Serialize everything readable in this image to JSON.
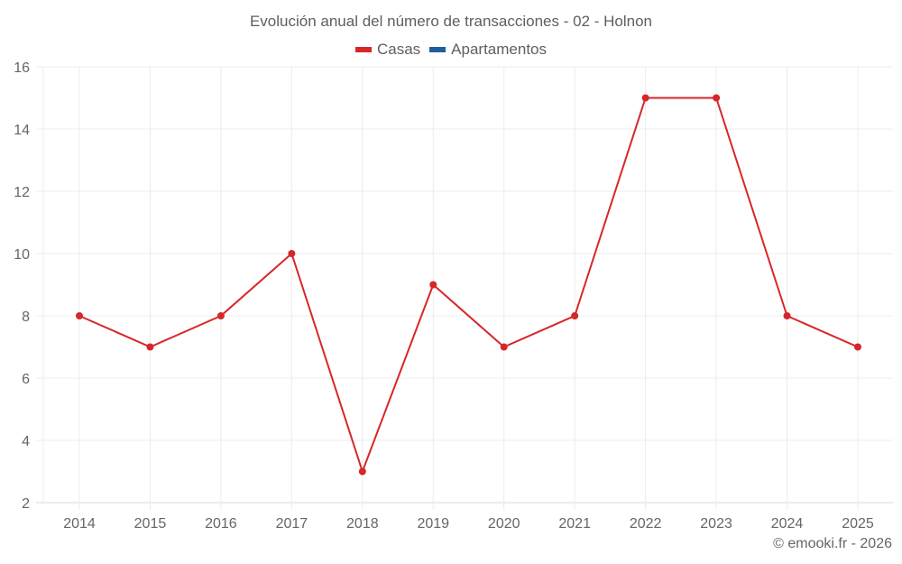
{
  "title": "Evolución anual del número de transacciones - 02 - Holnon",
  "legend": [
    {
      "label": "Casas",
      "color": "#d62728"
    },
    {
      "label": "Apartamentos",
      "color": "#1f5f9a"
    }
  ],
  "credit": "© emooki.fr - 2026",
  "chart_data": {
    "type": "line",
    "title": "Evolución anual del número de transacciones - 02 - Holnon",
    "xlabel": "",
    "ylabel": "",
    "x": [
      "2014",
      "2015",
      "2016",
      "2017",
      "2018",
      "2019",
      "2020",
      "2021",
      "2022",
      "2023",
      "2024",
      "2025"
    ],
    "series": [
      {
        "name": "Casas",
        "color": "#d62728",
        "values": [
          8,
          7,
          8,
          10,
          3,
          9,
          7,
          8,
          15,
          15,
          8,
          7
        ]
      },
      {
        "name": "Apartamentos",
        "color": "#1f5f9a",
        "values": []
      }
    ],
    "ylim": [
      2,
      16
    ],
    "yticks": [
      2,
      4,
      6,
      8,
      10,
      12,
      14,
      16
    ],
    "grid": true,
    "legend_position": "top"
  }
}
